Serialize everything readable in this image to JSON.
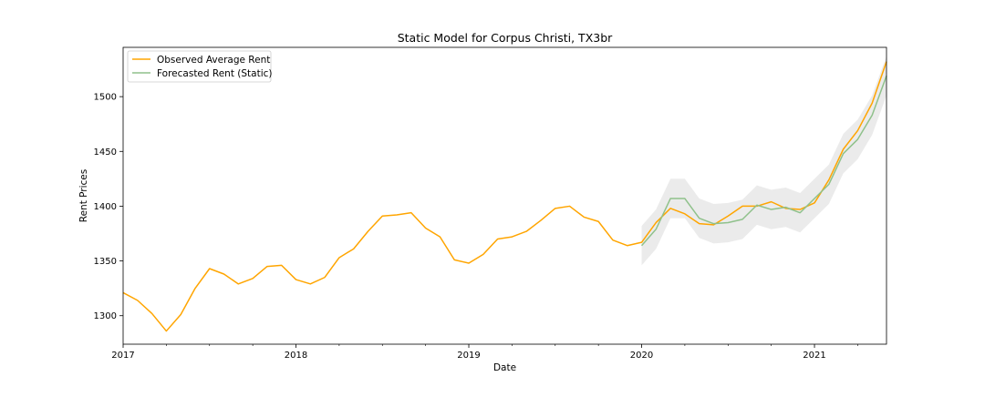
{
  "chart_data": {
    "type": "line",
    "title": "Static Model for Corpus Christi, TX3br",
    "xlabel": "Date",
    "ylabel": "Rent Prices",
    "xlim": [
      "2017-01",
      "2021-06"
    ],
    "ylim": [
      1274,
      1545
    ],
    "x_ticks": [
      {
        "date": "2017-01",
        "label": "2017"
      },
      {
        "date": "2018-01",
        "label": "2018"
      },
      {
        "date": "2019-01",
        "label": "2019"
      },
      {
        "date": "2020-01",
        "label": "2020"
      },
      {
        "date": "2021-01",
        "label": "2021"
      }
    ],
    "x_minor_ticks": [
      "2017-04",
      "2017-07",
      "2017-10",
      "2018-04",
      "2018-07",
      "2018-10",
      "2019-04",
      "2019-07",
      "2019-10",
      "2020-04",
      "2020-07",
      "2020-10",
      "2021-04"
    ],
    "y_ticks": [
      1300,
      1350,
      1400,
      1450,
      1500
    ],
    "grid": false,
    "legend_position": "top-left",
    "series": [
      {
        "name": "Observed Average Rent",
        "color": "#ffa500",
        "points": [
          [
            "2017-01",
            1321
          ],
          [
            "2017-02",
            1314
          ],
          [
            "2017-03",
            1302
          ],
          [
            "2017-04",
            1286
          ],
          [
            "2017-05",
            1301
          ],
          [
            "2017-06",
            1325
          ],
          [
            "2017-07",
            1343
          ],
          [
            "2017-08",
            1338
          ],
          [
            "2017-09",
            1329
          ],
          [
            "2017-10",
            1334
          ],
          [
            "2017-11",
            1345
          ],
          [
            "2017-12",
            1346
          ],
          [
            "2018-01",
            1333
          ],
          [
            "2018-02",
            1329
          ],
          [
            "2018-03",
            1335
          ],
          [
            "2018-04",
            1353
          ],
          [
            "2018-05",
            1361
          ],
          [
            "2018-06",
            1377
          ],
          [
            "2018-07",
            1391
          ],
          [
            "2018-08",
            1392
          ],
          [
            "2018-09",
            1394
          ],
          [
            "2018-10",
            1380
          ],
          [
            "2018-11",
            1372
          ],
          [
            "2018-12",
            1351
          ],
          [
            "2019-01",
            1348
          ],
          [
            "2019-02",
            1356
          ],
          [
            "2019-03",
            1370
          ],
          [
            "2019-04",
            1372
          ],
          [
            "2019-05",
            1377
          ],
          [
            "2019-06",
            1387
          ],
          [
            "2019-07",
            1398
          ],
          [
            "2019-08",
            1400
          ],
          [
            "2019-09",
            1390
          ],
          [
            "2019-10",
            1386
          ],
          [
            "2019-11",
            1369
          ],
          [
            "2019-12",
            1364
          ],
          [
            "2020-01",
            1367
          ],
          [
            "2020-02",
            1385
          ],
          [
            "2020-03",
            1398
          ],
          [
            "2020-04",
            1393
          ],
          [
            "2020-05",
            1384
          ],
          [
            "2020-06",
            1383
          ],
          [
            "2020-07",
            1391
          ],
          [
            "2020-08",
            1400
          ],
          [
            "2020-09",
            1400
          ],
          [
            "2020-10",
            1404
          ],
          [
            "2020-11",
            1398
          ],
          [
            "2020-12",
            1397
          ],
          [
            "2021-01",
            1403
          ],
          [
            "2021-02",
            1424
          ],
          [
            "2021-03",
            1452
          ],
          [
            "2021-04",
            1469
          ],
          [
            "2021-05",
            1494
          ],
          [
            "2021-06",
            1532
          ]
        ]
      },
      {
        "name": "Forecasted Rent (Static)",
        "color": "#8fc18b",
        "points": [
          [
            "2020-01",
            1364
          ],
          [
            "2020-02",
            1379
          ],
          [
            "2020-03",
            1407
          ],
          [
            "2020-04",
            1407
          ],
          [
            "2020-05",
            1389
          ],
          [
            "2020-06",
            1384
          ],
          [
            "2020-07",
            1385
          ],
          [
            "2020-08",
            1388
          ],
          [
            "2020-09",
            1401
          ],
          [
            "2020-10",
            1397
          ],
          [
            "2020-11",
            1399
          ],
          [
            "2020-12",
            1394
          ],
          [
            "2021-01",
            1407
          ],
          [
            "2021-02",
            1420
          ],
          [
            "2021-03",
            1448
          ],
          [
            "2021-04",
            1461
          ],
          [
            "2021-05",
            1483
          ],
          [
            "2021-06",
            1519
          ]
        ]
      }
    ],
    "confidence_band": {
      "color": "#d3d3d3",
      "opacity": 0.45,
      "dates": [
        "2020-01",
        "2020-02",
        "2020-03",
        "2020-04",
        "2020-05",
        "2020-06",
        "2020-07",
        "2020-08",
        "2020-09",
        "2020-10",
        "2020-11",
        "2020-12",
        "2021-01",
        "2021-02",
        "2021-03",
        "2021-04",
        "2021-05",
        "2021-06"
      ],
      "lower": [
        1346,
        1361,
        1389,
        1389,
        1371,
        1366,
        1367,
        1370,
        1383,
        1379,
        1381,
        1376,
        1389,
        1402,
        1430,
        1443,
        1465,
        1501
      ],
      "upper": [
        1382,
        1397,
        1425,
        1425,
        1407,
        1402,
        1403,
        1406,
        1419,
        1415,
        1417,
        1412,
        1425,
        1438,
        1466,
        1479,
        1501,
        1537
      ]
    }
  }
}
